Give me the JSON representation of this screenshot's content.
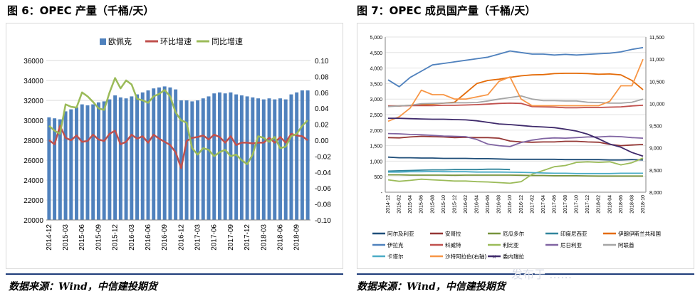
{
  "left": {
    "title": "图 6：OPEC 产量（千桶/天）",
    "source": "数据来源：Wind，中信建投期货"
  },
  "right": {
    "title": "图 7：OPEC 成员国产量（千桶/天）",
    "source": "数据来源：Wind，中信建投期货"
  },
  "watermark": "发布于 ……",
  "colors": {
    "rule": "#1f3d7a",
    "bar": "#4f81bd",
    "mom": "#c0504d",
    "yoy": "#9bbb59"
  },
  "chart_data": [
    {
      "type": "bar",
      "ylim": [
        20000,
        36000
      ],
      "y2lim": [
        -0.1,
        0.1
      ],
      "y_ticks": [
        "20000",
        "22000",
        "24000",
        "26000",
        "28000",
        "30000",
        "32000",
        "34000",
        "36000"
      ],
      "y2_ticks": [
        "-0.10",
        "-0.08",
        "-0.06",
        "-0.04",
        "-0.02",
        "0.00",
        "0.02",
        "0.04",
        "0.06",
        "0.08",
        "0.10"
      ],
      "x_tick_labels": [
        "2014-12",
        "2015-03",
        "2015-06",
        "2015-09",
        "2015-12",
        "2016-03",
        "2016-06",
        "2016-09",
        "2016-12",
        "2017-03",
        "2017-06",
        "2017-09",
        "2017-12",
        "2018-03",
        "2018-06",
        "2018-09"
      ],
      "legend": [
        "欧佩克",
        "环比增速",
        "同比增速"
      ],
      "legend_position": "top",
      "grid": true,
      "series": [
        {
          "name": "欧佩克",
          "type": "bar",
          "axis": "left",
          "values": [
            30300,
            30200,
            30100,
            30900,
            31100,
            31300,
            31600,
            31500,
            31600,
            31800,
            31900,
            32100,
            32500,
            32300,
            32200,
            32400,
            32600,
            32800,
            33000,
            33200,
            33300,
            33400,
            33300,
            33100,
            32000,
            32000,
            31900,
            32000,
            32200,
            32400,
            32700,
            32800,
            32700,
            32800,
            32600,
            32500,
            32400,
            32300,
            32200,
            32100,
            32200,
            32100,
            32200,
            32100,
            32600,
            32800,
            33000,
            33000
          ]
        },
        {
          "name": "环比增速",
          "type": "line",
          "axis": "right",
          "values": [
            0.0,
            -0.005,
            0.018,
            0.003,
            0.0,
            0.006,
            -0.002,
            -0.001,
            0.007,
            0.001,
            -0.001,
            0.008,
            0.012,
            -0.005,
            -0.002,
            0.007,
            0.002,
            0.005,
            -0.003,
            0.007,
            0.002,
            -0.002,
            -0.006,
            -0.015,
            -0.035,
            -0.001,
            0.003,
            0.004,
            0.006,
            0.001,
            0.007,
            0.004,
            -0.003,
            0.005,
            -0.006,
            -0.003,
            -0.003,
            -0.004,
            -0.003,
            -0.003,
            0.003,
            -0.003,
            0.004,
            -0.003,
            0.008,
            0.006,
            0.005,
            0.0
          ]
        },
        {
          "name": "同比增速",
          "type": "line",
          "axis": "right",
          "values": [
            0.018,
            0.012,
            0.008,
            0.045,
            0.042,
            0.041,
            0.06,
            0.055,
            0.048,
            0.04,
            0.038,
            0.06,
            0.078,
            0.065,
            0.075,
            0.07,
            0.052,
            0.05,
            0.047,
            0.055,
            0.058,
            0.063,
            0.055,
            0.035,
            0.025,
            0.022,
            -0.01,
            -0.018,
            -0.01,
            -0.012,
            -0.02,
            -0.015,
            -0.012,
            -0.02,
            -0.018,
            -0.025,
            -0.03,
            -0.018,
            0.005,
            0.003,
            -0.002,
            0.004,
            -0.01,
            -0.008,
            0.005,
            0.008,
            0.018,
            0.025
          ]
        }
      ]
    },
    {
      "type": "line",
      "ylim": [
        0,
        5000
      ],
      "y2lim": [
        8000,
        11500
      ],
      "y_ticks": [
        "-",
        "500",
        "1,000",
        "1,500",
        "2,000",
        "2,500",
        "3,000",
        "3,500",
        "4,000",
        "4,500",
        "5,000"
      ],
      "y2_ticks": [
        "8,000",
        "8,500",
        "9,000",
        "9,500",
        "10,000",
        "10,500",
        "11,000",
        "11,500"
      ],
      "x_tick_labels": [
        "2014-12",
        "2015-02",
        "2015-04",
        "2015-06",
        "2015-08",
        "2015-10",
        "2015-12",
        "2016-02",
        "2016-04",
        "2016-06",
        "2016-08",
        "2016-10",
        "2016-12",
        "2017-02",
        "2017-04",
        "2017-06",
        "2017-08",
        "2017-10",
        "2017-12",
        "2018-02",
        "2018-04",
        "2018-06",
        "2018-08",
        "2018-10"
      ],
      "legend_position": "bottom",
      "grid": true,
      "series": [
        {
          "name": "阿尔及利亚",
          "color": "#1f4e79",
          "axis": "left",
          "values": [
            1130,
            1110,
            1110,
            1100,
            1100,
            1090,
            1090,
            1090,
            1080,
            1080,
            1070,
            1060,
            1060,
            1060,
            1060,
            1060,
            1050,
            1050,
            1050,
            1050,
            1040,
            1040,
            1050,
            1040
          ]
        },
        {
          "name": "安哥拉",
          "color": "#953735",
          "axis": "left",
          "values": [
            1760,
            1750,
            1780,
            1800,
            1790,
            1780,
            1760,
            1770,
            1760,
            1760,
            1740,
            1650,
            1620,
            1610,
            1620,
            1620,
            1640,
            1640,
            1620,
            1610,
            1540,
            1500,
            1520,
            1540
          ]
        },
        {
          "name": "厄瓜多尔",
          "color": "#77933c",
          "axis": "left",
          "values": [
            560,
            560,
            550,
            550,
            550,
            550,
            545,
            550,
            550,
            550,
            550,
            550,
            545,
            540,
            540,
            530,
            530,
            530,
            525,
            520,
            520,
            520,
            520,
            520
          ]
        },
        {
          "name": "印度尼西亚",
          "color": "#31859c",
          "axis": "left",
          "values": [
            680,
            690,
            700,
            710,
            720,
            720,
            730,
            730,
            730,
            740,
            740,
            730
          ]
        },
        {
          "name": "伊朗伊斯兰共和国",
          "color": "#e46c0a",
          "axis": "left",
          "values": [
            2780,
            2780,
            2800,
            2820,
            2840,
            2870,
            2900,
            3200,
            3500,
            3600,
            3640,
            3700,
            3750,
            3780,
            3790,
            3820,
            3830,
            3830,
            3820,
            3800,
            3810,
            3780,
            3600,
            3300
          ]
        },
        {
          "name": "伊拉克",
          "color": "#4f81bd",
          "axis": "left",
          "values": [
            3620,
            3400,
            3700,
            3900,
            4100,
            4150,
            4200,
            4250,
            4300,
            4350,
            4450,
            4550,
            4500,
            4450,
            4450,
            4420,
            4440,
            4420,
            4440,
            4460,
            4480,
            4520,
            4600,
            4660
          ]
        },
        {
          "name": "科威特",
          "color": "#c0504d",
          "axis": "left",
          "values": [
            2780,
            2780,
            2790,
            2790,
            2790,
            2800,
            2800,
            2810,
            2820,
            2840,
            2860,
            2870,
            2860,
            2760,
            2750,
            2740,
            2720,
            2720,
            2730,
            2730,
            2740,
            2750,
            2780,
            2800
          ]
        },
        {
          "name": "利比亚",
          "color": "#9bbb59",
          "axis": "left",
          "values": [
            400,
            350,
            380,
            420,
            400,
            380,
            360,
            360,
            340,
            330,
            310,
            290,
            340,
            580,
            700,
            820,
            860,
            960,
            980,
            960,
            980,
            880,
            950,
            1100
          ]
        },
        {
          "name": "尼日利亚",
          "color": "#8064a2",
          "axis": "left",
          "values": [
            1890,
            1880,
            1860,
            1850,
            1830,
            1810,
            1800,
            1790,
            1700,
            1550,
            1500,
            1470,
            1600,
            1680,
            1730,
            1750,
            1740,
            1760,
            1780,
            1780,
            1800,
            1790,
            1760,
            1740
          ]
        },
        {
          "name": "阿联酋",
          "color": "#a5a5a5",
          "axis": "left",
          "values": [
            2760,
            2780,
            2800,
            2850,
            2860,
            2870,
            2880,
            2880,
            2890,
            2940,
            3000,
            3050,
            3100,
            3000,
            2950,
            2950,
            2940,
            2940,
            2900,
            2890,
            2870,
            2870,
            2900,
            3000
          ]
        },
        {
          "name": "卡塔尔",
          "color": "#4bacc6",
          "axis": "left",
          "values": [
            650,
            650,
            660,
            660,
            665,
            660,
            660,
            660,
            650,
            650,
            650,
            645,
            640,
            630,
            620,
            610,
            610,
            600,
            600,
            600,
            600,
            610,
            610,
            610
          ]
        },
        {
          "name": "沙特阿拉伯(右轴)",
          "color": "#f79646",
          "axis": "right",
          "values": [
            9600,
            9700,
            9900,
            10300,
            10200,
            10200,
            10100,
            10100,
            10150,
            10200,
            10500,
            10600,
            10100,
            9950,
            9950,
            9950,
            9950,
            9950,
            9950,
            9950,
            10050,
            10400,
            10400,
            11000
          ]
        },
        {
          "name": "委内瑞拉",
          "color": "#3f2a6b",
          "axis": "left",
          "values": [
            2380,
            2380,
            2370,
            2360,
            2350,
            2350,
            2340,
            2330,
            2300,
            2250,
            2200,
            2180,
            2150,
            2120,
            2100,
            2080,
            2030,
            1970,
            1870,
            1720,
            1550,
            1450,
            1280,
            1160
          ]
        }
      ]
    }
  ]
}
